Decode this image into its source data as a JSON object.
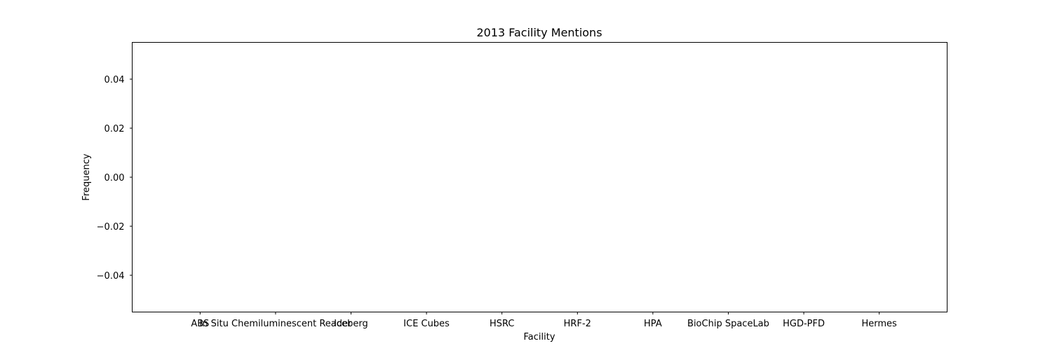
{
  "chart_data": {
    "type": "bar",
    "title": "2013 Facility Mentions",
    "xlabel": "Facility",
    "ylabel": "Frequency",
    "categories": [
      "ABS",
      "In Situ Chemiluminescent Reader",
      "Iceberg",
      "ICE Cubes",
      "HSRC",
      "HRF-2",
      "HPA",
      "BioChip SpaceLab",
      "HGD-PFD",
      "Hermes"
    ],
    "values": [
      0,
      0,
      0,
      0,
      0,
      0,
      0,
      0,
      0,
      0
    ],
    "ylim": [
      -0.055,
      0.055
    ],
    "yticks": [
      -0.04,
      -0.02,
      0.0,
      0.02,
      0.04
    ],
    "ytick_labels": [
      "−0.04",
      "−0.02",
      "0.00",
      "0.02",
      "0.04"
    ],
    "grid": false,
    "colors": {
      "axes": "#000000",
      "background": "#ffffff",
      "bar": "#1f77b4"
    }
  }
}
